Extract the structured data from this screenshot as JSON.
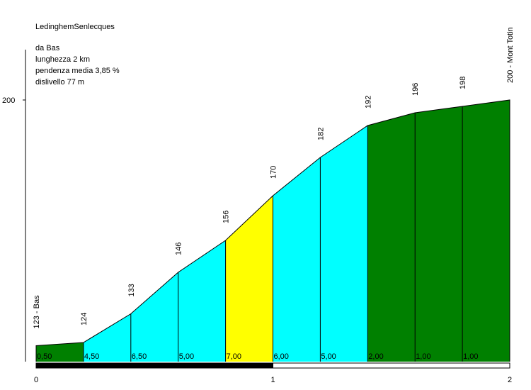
{
  "chart_data": {
    "type": "area",
    "title": "LedinghemSenlecques",
    "info": {
      "from": "da Bas",
      "length": "lunghezza 2 km",
      "avg_gradient": "pendenza media 3,85 %",
      "elevation_gain": "dislivello 77 m"
    },
    "x": [
      0,
      0.2,
      0.4,
      0.6,
      0.8,
      1.0,
      1.2,
      1.4,
      1.6,
      1.8,
      2.0
    ],
    "elevations": [
      123,
      124,
      133,
      146,
      156,
      170,
      182,
      192,
      196,
      198,
      200
    ],
    "point_labels": [
      "123 - Bas",
      "124",
      "133",
      "146",
      "156",
      "170",
      "182",
      "192",
      "196",
      "198",
      "200 - Mont Totin"
    ],
    "segments": [
      {
        "gradient": "0,50",
        "color": "#008000"
      },
      {
        "gradient": "4,50",
        "color": "#00ffff"
      },
      {
        "gradient": "6,50",
        "color": "#00ffff"
      },
      {
        "gradient": "5,00",
        "color": "#00ffff"
      },
      {
        "gradient": "7,00",
        "color": "#ffff00"
      },
      {
        "gradient": "6,00",
        "color": "#00ffff"
      },
      {
        "gradient": "5,00",
        "color": "#00ffff"
      },
      {
        "gradient": "2,00",
        "color": "#008000"
      },
      {
        "gradient": "1,00",
        "color": "#008000"
      },
      {
        "gradient": "1,00",
        "color": "#008000"
      }
    ],
    "y_ticks": [
      "200"
    ],
    "x_ticks": [
      "0",
      "1",
      "2"
    ],
    "xlim": [
      0,
      2
    ],
    "ylim": [
      118,
      200
    ]
  }
}
